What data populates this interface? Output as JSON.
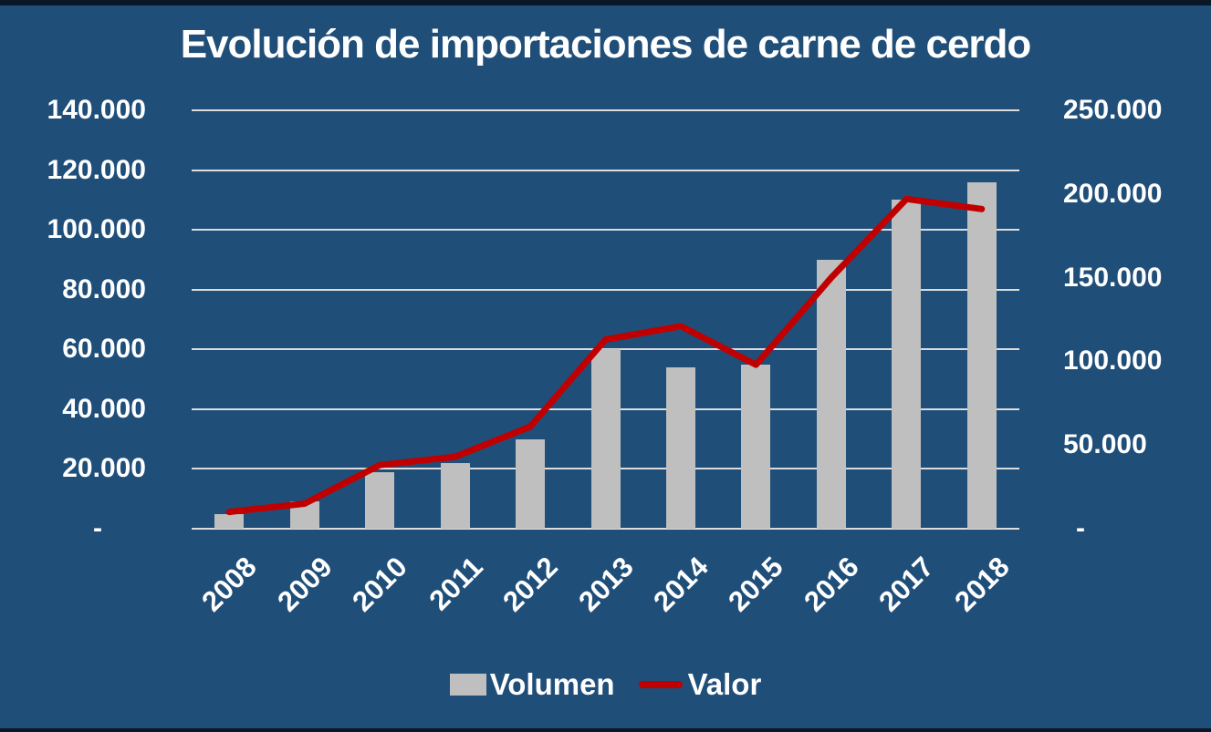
{
  "title": "Evolución de importaciones de carne de cerdo",
  "colors": {
    "background": "#1f4e79",
    "edge_strip": "#0a1724",
    "bar": "#bfbfbf",
    "line": "#c00000",
    "gridline": "#dcdcdc",
    "text": "#ffffff"
  },
  "legend": {
    "position": "bottom",
    "volumen_label": "Volumen",
    "valor_label": "Valor"
  },
  "chart_data": {
    "type": "bar",
    "subtype": "combo-bar-line-dual-axis",
    "title": "Evolución de importaciones de carne de cerdo",
    "categories": [
      "2008",
      "2009",
      "2010",
      "2011",
      "2012",
      "2013",
      "2014",
      "2015",
      "2016",
      "2017",
      "2018"
    ],
    "series": [
      {
        "name": "Volumen",
        "type": "bar",
        "axis": "left",
        "color": "#bfbfbf",
        "values": [
          5000,
          9000,
          19000,
          22000,
          30000,
          60000,
          54000,
          55000,
          90000,
          110000,
          116000
        ]
      },
      {
        "name": "Valor",
        "type": "line",
        "axis": "right",
        "color": "#c00000",
        "values": [
          10000,
          15000,
          38000,
          43000,
          61000,
          113000,
          121000,
          98000,
          150000,
          197000,
          191000
        ]
      }
    ],
    "left_axis": {
      "min": 0,
      "max": 140000,
      "step": 20000,
      "tick_values": [
        140000,
        120000,
        100000,
        80000,
        60000,
        40000,
        20000,
        0
      ],
      "tick_labels": [
        "140.000",
        "120.000",
        "100.000",
        "80.000",
        "60.000",
        "40.000",
        "20.000",
        "-"
      ]
    },
    "right_axis": {
      "min": 0,
      "max": 250000,
      "step": 50000,
      "tick_values": [
        250000,
        200000,
        150000,
        100000,
        50000,
        0
      ],
      "tick_labels": [
        "250.000",
        "200.000",
        "150.000",
        "100.000",
        "50.000",
        "-"
      ]
    },
    "grid": true,
    "xlabel": "",
    "ylabel_left": "",
    "ylabel_right": "",
    "legend_position": "bottom"
  }
}
